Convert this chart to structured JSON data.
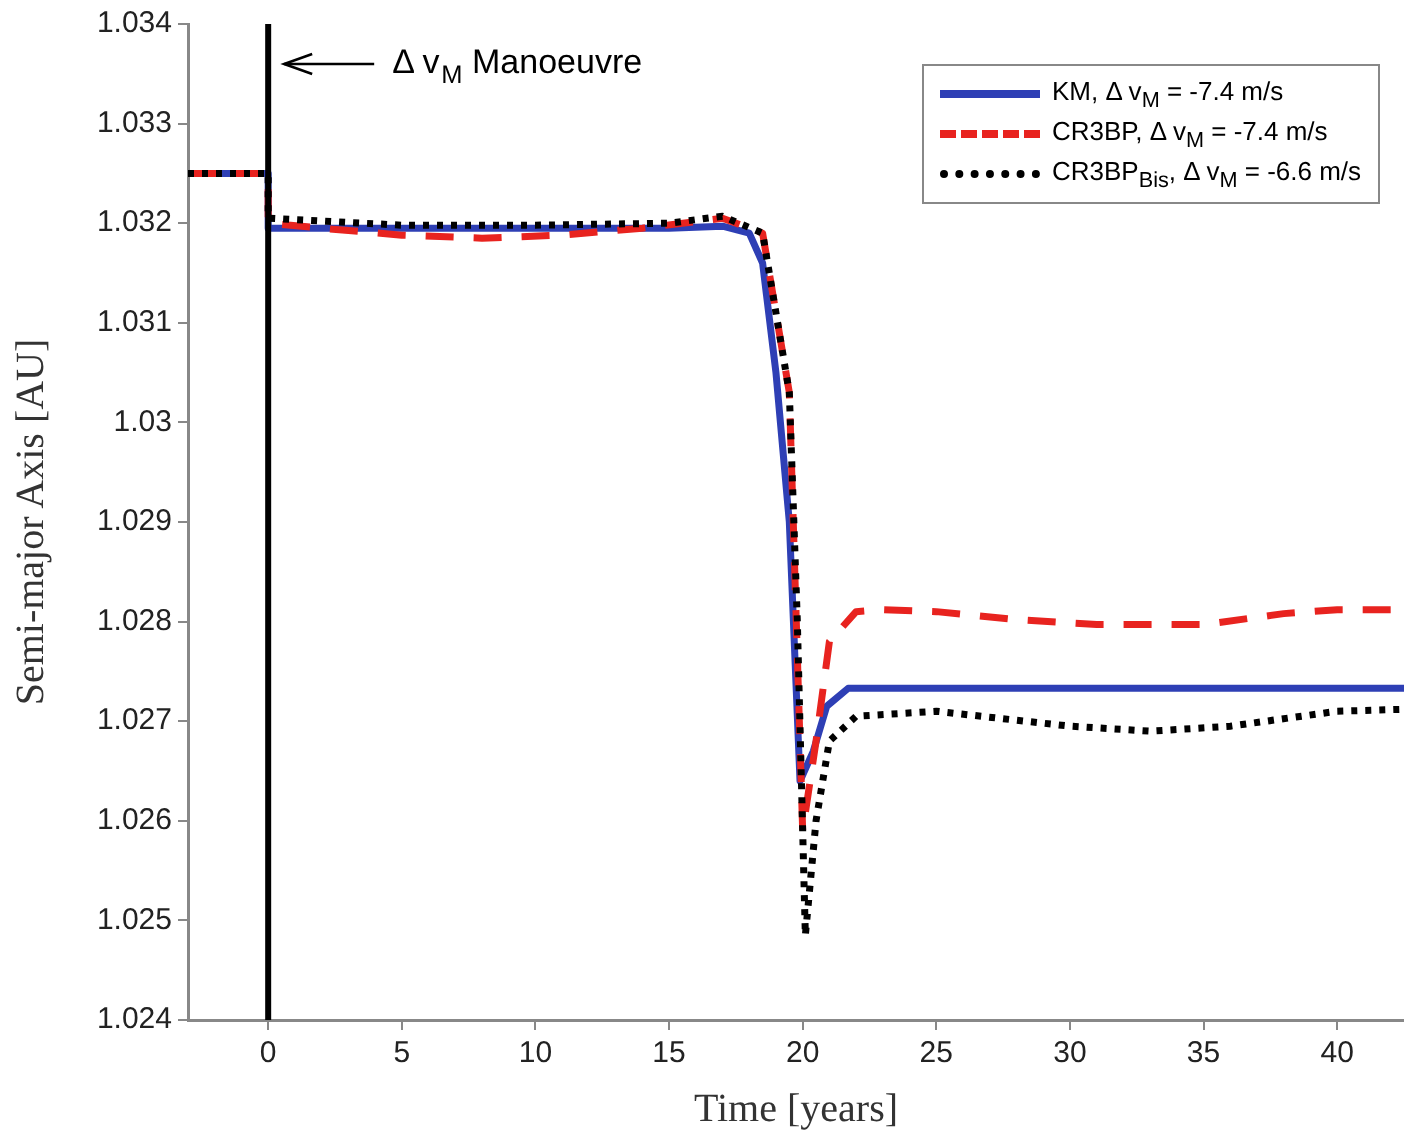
{
  "chart_data": {
    "type": "line",
    "xlabel": "Time [years]",
    "ylabel": "Semi-major Axis [AU]",
    "xlim": [
      -3,
      42.5
    ],
    "xticks": [
      0,
      5,
      10,
      15,
      20,
      25,
      30,
      35,
      40
    ],
    "ylim": [
      1.024,
      1.034
    ],
    "yticks": [
      1.024,
      1.025,
      1.026,
      1.027,
      1.028,
      1.029,
      1.03,
      1.031,
      1.032,
      1.033,
      1.034
    ],
    "grid": false,
    "legend": "top right",
    "marker": "none",
    "ref_lines": [
      {
        "axis": "x",
        "value": 0,
        "label": "Δ v$_{M}$ Manoeuvre",
        "color": "#000000"
      }
    ],
    "series": [
      {
        "name": "KM, Δ v$_{M}$ = -7.4 m/s",
        "color": "#2e3fb5",
        "line_style": "solid",
        "x": [
          -3,
          0,
          0,
          5,
          10,
          15,
          17,
          18,
          18.5,
          19,
          19.5,
          19.9,
          20.4,
          20.9,
          21.7,
          25,
          30,
          35,
          40,
          42.5
        ],
        "values": [
          1.0325,
          1.0325,
          1.03195,
          1.03195,
          1.03195,
          1.03195,
          1.03197,
          1.0319,
          1.0316,
          1.0305,
          1.029,
          1.0264,
          1.0267,
          1.02715,
          1.02733,
          1.02733,
          1.02733,
          1.02733,
          1.02733,
          1.02733
        ]
      },
      {
        "name": "CR3BP, Δ v$_{M}$ = -7.4 m/s",
        "color": "#e8231f",
        "line_style": "dashed",
        "x": [
          -3,
          0,
          0,
          2,
          5,
          8,
          11,
          14,
          17,
          18.5,
          19.5,
          20,
          20.5,
          21,
          22,
          23,
          25,
          28,
          31,
          35,
          38,
          40,
          42.5
        ],
        "values": [
          1.0325,
          1.0325,
          1.032,
          1.03195,
          1.03188,
          1.03185,
          1.03188,
          1.03195,
          1.03205,
          1.0319,
          1.0303,
          1.0259,
          1.0268,
          1.0278,
          1.0281,
          1.02812,
          1.0281,
          1.02802,
          1.02797,
          1.02797,
          1.02808,
          1.02812,
          1.02812
        ]
      },
      {
        "name": "CR3BP$_{Bis}$, Δ v$_{M}$ = -6.6 m/s",
        "color": "#000000",
        "line_style": "dotted",
        "x": [
          -3,
          0,
          0,
          5,
          10,
          15,
          17,
          18.5,
          19.5,
          19.8,
          20.1,
          20.5,
          21,
          22,
          25,
          30,
          33,
          36,
          40,
          42.5
        ],
        "values": [
          1.0325,
          1.0325,
          1.03205,
          1.03198,
          1.03198,
          1.032,
          1.03207,
          1.0319,
          1.0303,
          1.028,
          1.02485,
          1.026,
          1.0268,
          1.02705,
          1.0271,
          1.02695,
          1.0269,
          1.02695,
          1.0271,
          1.02712
        ]
      }
    ]
  }
}
